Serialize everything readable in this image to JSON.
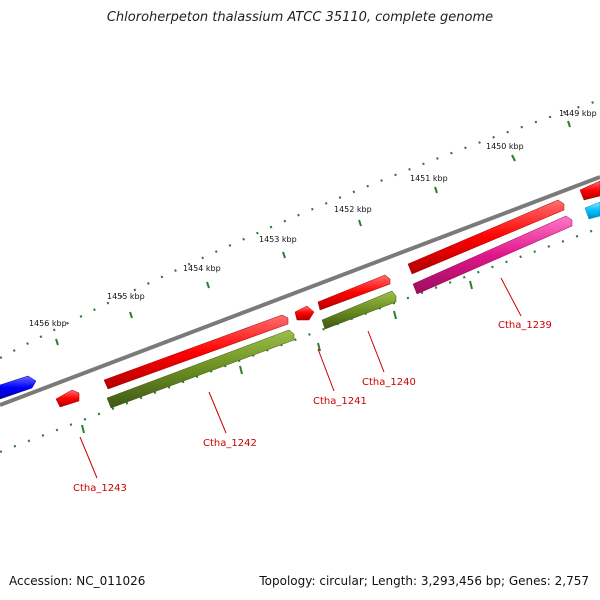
{
  "title": "Chloroherpeton thalassium ATCC 35110, complete genome",
  "footer": {
    "accession": "Accession: NC_011026",
    "summary": "Topology: circular; Length: 3,293,456 bp; Genes: 2,757"
  },
  "kbp_labels": [
    "1449 kbp",
    "1450 kbp",
    "1451 kbp",
    "1452 kbp",
    "1453 kbp",
    "1454 kbp",
    "1455 kbp",
    "1456 kbp"
  ],
  "gene_labels": [
    "Ctha_1239",
    "Ctha_1240",
    "Ctha_1241",
    "Ctha_1242",
    "Ctha_1243"
  ],
  "colors": {
    "cds": "#ff0000",
    "olive": "#6b8e23",
    "pink": "#e0168a",
    "blue": "#0000ff",
    "cyan": "#00bfff",
    "backbone": "#808080",
    "tick": "#2e7d32",
    "label": "#cc0000"
  }
}
